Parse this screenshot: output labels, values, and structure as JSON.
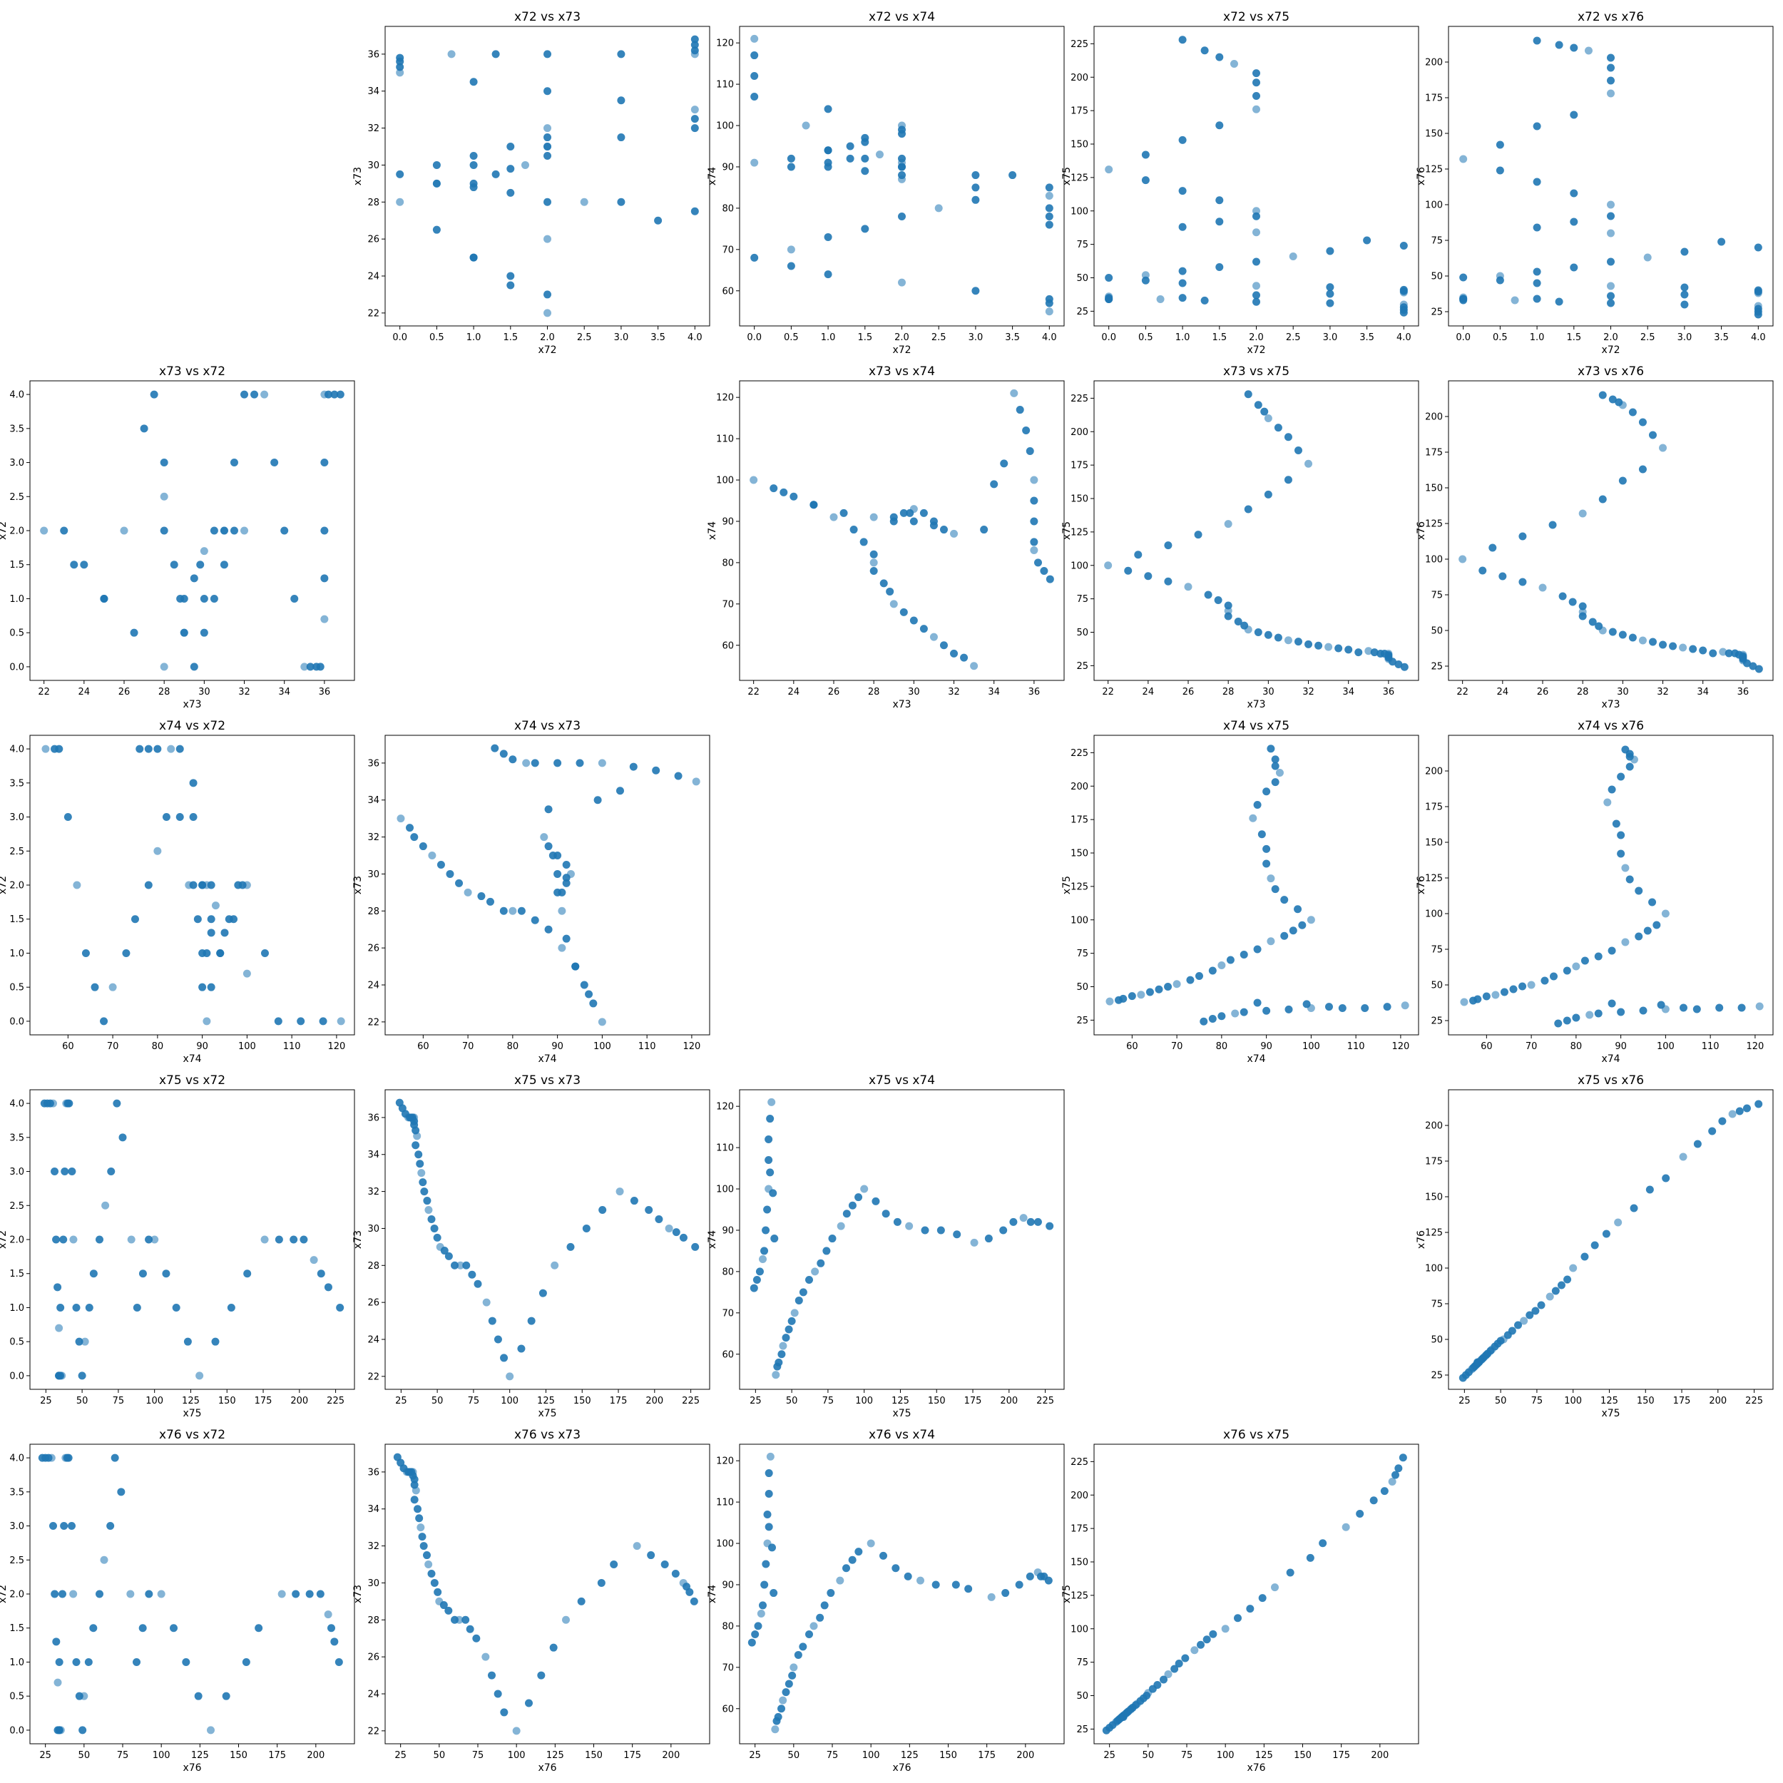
{
  "figure": {
    "variables": [
      "x72",
      "x73",
      "x74",
      "x75",
      "x76"
    ],
    "point_color": "#1f77b4",
    "background": "#ffffff",
    "grid": false,
    "diagonal": "empty"
  },
  "chart_data": {
    "type": "scatter",
    "layout": "pairwise scatter matrix, row variable plotted vs column variable",
    "variables": {
      "x72": {
        "ticks": [
          0.0,
          0.5,
          1.0,
          1.5,
          2.0,
          2.5,
          3.0,
          3.5,
          4.0
        ],
        "tick_labels": [
          "0.0",
          "0.5",
          "1.0",
          "1.5",
          "2.0",
          "2.5",
          "3.0",
          "3.5",
          "4.0"
        ],
        "range": [
          -0.2,
          4.2
        ]
      },
      "x73": {
        "ticks": [
          22,
          24,
          26,
          28,
          30,
          32,
          34,
          36
        ],
        "tick_labels": [
          "22",
          "24",
          "26",
          "28",
          "30",
          "32",
          "34",
          "36"
        ],
        "range": [
          21.3,
          37.5
        ]
      },
      "x74": {
        "ticks": [
          60,
          70,
          80,
          90,
          100,
          110,
          120
        ],
        "tick_labels": [
          "60",
          "70",
          "80",
          "90",
          "100",
          "110",
          "120"
        ],
        "range": [
          51.5,
          124.0
        ]
      },
      "x75": {
        "ticks": [
          25,
          50,
          75,
          100,
          125,
          150,
          175,
          200,
          225
        ],
        "tick_labels": [
          "25",
          "50",
          "75",
          "100",
          "125",
          "150",
          "175",
          "200",
          "225"
        ],
        "range": [
          14,
          238
        ]
      },
      "x76": {
        "ticks": [
          25,
          50,
          75,
          100,
          125,
          150,
          175,
          200
        ],
        "tick_labels": [
          "25",
          "50",
          "75",
          "100",
          "125",
          "150",
          "175",
          "200"
        ],
        "range": [
          15,
          225
        ]
      }
    },
    "series_records": [
      {
        "x72": 4.0,
        "x73": 36.8,
        "x74": 76,
        "x75": 24,
        "x76": 23
      },
      {
        "x72": 4.0,
        "x73": 36.5,
        "x74": 78,
        "x75": 26,
        "x76": 25
      },
      {
        "x72": 4.0,
        "x73": 36.2,
        "x74": 80,
        "x75": 28,
        "x76": 27
      },
      {
        "x72": 4.0,
        "x73": 36.0,
        "x74": 83,
        "x75": 30,
        "x76": 29
      },
      {
        "x72": 3.0,
        "x73": 36.0,
        "x74": 85,
        "x75": 31,
        "x76": 30
      },
      {
        "x72": 2.0,
        "x73": 36.0,
        "x74": 90,
        "x75": 32,
        "x76": 31
      },
      {
        "x72": 1.3,
        "x73": 36.0,
        "x74": 95,
        "x75": 33,
        "x76": 32
      },
      {
        "x72": 0.7,
        "x73": 36.0,
        "x74": 100,
        "x75": 34,
        "x76": 33
      },
      {
        "x72": 0.0,
        "x73": 35.8,
        "x74": 107,
        "x75": 34,
        "x76": 33
      },
      {
        "x72": 0.0,
        "x73": 35.6,
        "x74": 112,
        "x75": 34,
        "x76": 34
      },
      {
        "x72": 0.0,
        "x73": 35.3,
        "x74": 117,
        "x75": 35,
        "x76": 34
      },
      {
        "x72": 0.0,
        "x73": 35.0,
        "x74": 121,
        "x75": 36,
        "x76": 35
      },
      {
        "x72": 1.0,
        "x73": 34.5,
        "x74": 104,
        "x75": 35,
        "x76": 34
      },
      {
        "x72": 2.0,
        "x73": 34.0,
        "x74": 99,
        "x75": 37,
        "x76": 36
      },
      {
        "x72": 3.0,
        "x73": 33.5,
        "x74": 88,
        "x75": 38,
        "x76": 37
      },
      {
        "x72": 4.0,
        "x73": 33.0,
        "x74": 55,
        "x75": 39,
        "x76": 38
      },
      {
        "x72": 4.0,
        "x73": 32.5,
        "x74": 57,
        "x75": 40,
        "x76": 39
      },
      {
        "x72": 4.0,
        "x73": 32.0,
        "x74": 58,
        "x75": 41,
        "x76": 40
      },
      {
        "x72": 3.0,
        "x73": 31.5,
        "x74": 60,
        "x75": 43,
        "x76": 42
      },
      {
        "x72": 2.0,
        "x73": 31.0,
        "x74": 62,
        "x75": 44,
        "x76": 43
      },
      {
        "x72": 1.0,
        "x73": 30.5,
        "x74": 64,
        "x75": 46,
        "x76": 45
      },
      {
        "x72": 0.5,
        "x73": 30.0,
        "x74": 66,
        "x75": 48,
        "x76": 47
      },
      {
        "x72": 0.0,
        "x73": 29.5,
        "x74": 68,
        "x75": 50,
        "x76": 49
      },
      {
        "x72": 0.5,
        "x73": 29.0,
        "x74": 70,
        "x75": 52,
        "x76": 50
      },
      {
        "x72": 1.0,
        "x73": 28.8,
        "x74": 73,
        "x75": 55,
        "x76": 53
      },
      {
        "x72": 1.5,
        "x73": 28.5,
        "x74": 75,
        "x75": 58,
        "x76": 56
      },
      {
        "x72": 2.0,
        "x73": 28.0,
        "x74": 78,
        "x75": 62,
        "x76": 60
      },
      {
        "x72": 2.5,
        "x73": 28.0,
        "x74": 80,
        "x75": 66,
        "x76": 63
      },
      {
        "x72": 3.0,
        "x73": 28.0,
        "x74": 82,
        "x75": 70,
        "x76": 67
      },
      {
        "x72": 4.0,
        "x73": 27.5,
        "x74": 85,
        "x75": 74,
        "x76": 70
      },
      {
        "x72": 3.5,
        "x73": 27.0,
        "x74": 88,
        "x75": 78,
        "x76": 74
      },
      {
        "x72": 2.0,
        "x73": 26.0,
        "x74": 91,
        "x75": 84,
        "x76": 80
      },
      {
        "x72": 1.0,
        "x73": 25.0,
        "x74": 94,
        "x75": 88,
        "x76": 84
      },
      {
        "x72": 1.5,
        "x73": 24.0,
        "x74": 96,
        "x75": 92,
        "x76": 88
      },
      {
        "x72": 2.0,
        "x73": 23.0,
        "x74": 98,
        "x75": 96,
        "x76": 92
      },
      {
        "x72": 2.0,
        "x73": 22.0,
        "x74": 100,
        "x75": 100,
        "x76": 100
      },
      {
        "x72": 1.5,
        "x73": 23.5,
        "x74": 97,
        "x75": 108,
        "x76": 108
      },
      {
        "x72": 1.0,
        "x73": 25.0,
        "x74": 94,
        "x75": 115,
        "x76": 116
      },
      {
        "x72": 0.5,
        "x73": 26.5,
        "x74": 92,
        "x75": 123,
        "x76": 124
      },
      {
        "x72": 0.0,
        "x73": 28.0,
        "x74": 91,
        "x75": 131,
        "x76": 132
      },
      {
        "x72": 0.5,
        "x73": 29.0,
        "x74": 90,
        "x75": 142,
        "x76": 142
      },
      {
        "x72": 1.0,
        "x73": 30.0,
        "x74": 90,
        "x75": 153,
        "x76": 155
      },
      {
        "x72": 1.5,
        "x73": 31.0,
        "x74": 89,
        "x75": 164,
        "x76": 163
      },
      {
        "x72": 2.0,
        "x73": 32.0,
        "x74": 87,
        "x75": 176,
        "x76": 178
      },
      {
        "x72": 2.0,
        "x73": 31.5,
        "x74": 88,
        "x75": 186,
        "x76": 187
      },
      {
        "x72": 2.0,
        "x73": 31.0,
        "x74": 90,
        "x75": 196,
        "x76": 196
      },
      {
        "x72": 2.0,
        "x73": 30.5,
        "x74": 92,
        "x75": 203,
        "x76": 203
      },
      {
        "x72": 1.7,
        "x73": 30.0,
        "x74": 93,
        "x75": 210,
        "x76": 208
      },
      {
        "x72": 1.5,
        "x73": 29.8,
        "x74": 92,
        "x75": 215,
        "x76": 210
      },
      {
        "x72": 1.3,
        "x73": 29.5,
        "x74": 92,
        "x75": 220,
        "x76": 212
      },
      {
        "x72": 1.0,
        "x73": 29.0,
        "x74": 91,
        "x75": 228,
        "x76": 215
      }
    ],
    "subplots": [
      {
        "title": "x72 vs x73",
        "xlabel": "x72",
        "ylabel": "x73"
      },
      {
        "title": "x72 vs x74",
        "xlabel": "x72",
        "ylabel": "x74"
      },
      {
        "title": "x72 vs x75",
        "xlabel": "x72",
        "ylabel": "x75"
      },
      {
        "title": "x72 vs x76",
        "xlabel": "x72",
        "ylabel": "x76"
      },
      {
        "title": "x73 vs x72",
        "xlabel": "x73",
        "ylabel": "x72"
      },
      {
        "title": "x73 vs x74",
        "xlabel": "x73",
        "ylabel": "x74"
      },
      {
        "title": "x73 vs x75",
        "xlabel": "x73",
        "ylabel": "x75"
      },
      {
        "title": "x73 vs x76",
        "xlabel": "x73",
        "ylabel": "x76"
      },
      {
        "title": "x74 vs x72",
        "xlabel": "x74",
        "ylabel": "x72"
      },
      {
        "title": "x74 vs x73",
        "xlabel": "x74",
        "ylabel": "x73"
      },
      {
        "title": "x74 vs x75",
        "xlabel": "x74",
        "ylabel": "x75"
      },
      {
        "title": "x74 vs x76",
        "xlabel": "x74",
        "ylabel": "x76"
      },
      {
        "title": "x75 vs x72",
        "xlabel": "x75",
        "ylabel": "x72"
      },
      {
        "title": "x75 vs x73",
        "xlabel": "x75",
        "ylabel": "x73"
      },
      {
        "title": "x75 vs x74",
        "xlabel": "x75",
        "ylabel": "x74"
      },
      {
        "title": "x75 vs x76",
        "xlabel": "x75",
        "ylabel": "x76"
      },
      {
        "title": "x76 vs x72",
        "xlabel": "x76",
        "ylabel": "x72"
      },
      {
        "title": "x76 vs x73",
        "xlabel": "x76",
        "ylabel": "x73"
      },
      {
        "title": "x76 vs x74",
        "xlabel": "x76",
        "ylabel": "x74"
      },
      {
        "title": "x76 vs x75",
        "xlabel": "x76",
        "ylabel": "x75"
      }
    ]
  }
}
